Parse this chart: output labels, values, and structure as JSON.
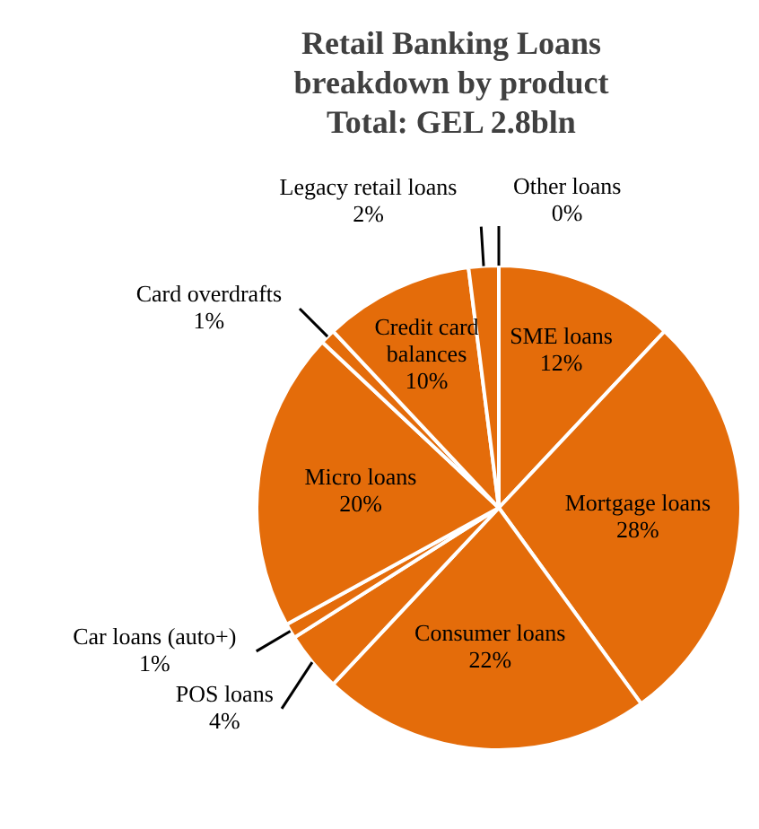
{
  "chart_data": {
    "type": "pie",
    "title": "Retail Banking Loans\nbreakdown by product\nTotal: GEL 2.8bln",
    "categories": [
      "Other loans",
      "SME loans",
      "Mortgage loans",
      "Consumer loans",
      "POS loans",
      "Car loans (auto+)",
      "Micro loans",
      "Card overdrafts",
      "Credit card balances",
      "Legacy retail loans"
    ],
    "values": [
      0,
      12,
      28,
      22,
      4,
      1,
      20,
      1,
      10,
      2
    ],
    "value_labels": [
      "0%",
      "12%",
      "28%",
      "22%",
      "4%",
      "1%",
      "20%",
      "1%",
      "10%",
      "2%"
    ],
    "colors": [
      "#e46c0a",
      "#e46c0a",
      "#e46c0a",
      "#e46c0a",
      "#e46c0a",
      "#e46c0a",
      "#e46c0a",
      "#e46c0a",
      "#e46c0a",
      "#e46c0a"
    ]
  }
}
